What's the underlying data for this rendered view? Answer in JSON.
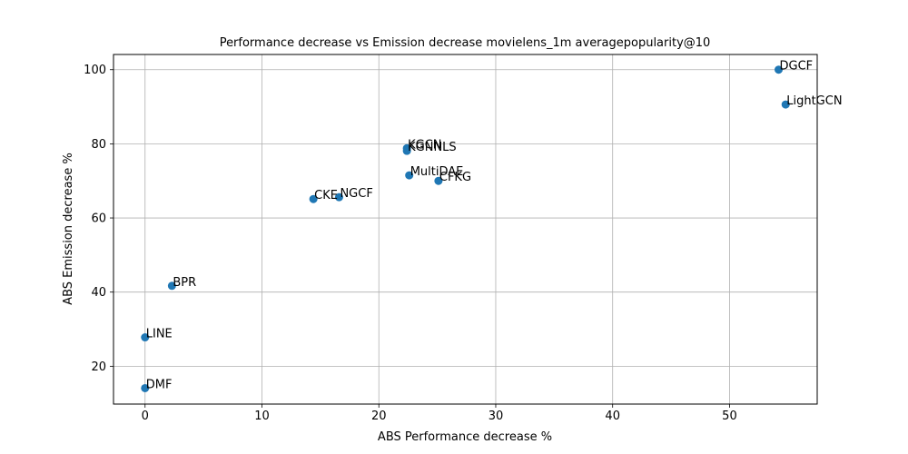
{
  "chart_data": {
    "type": "scatter",
    "title": "Performance decrease vs Emission decrease movielens_1m averagepopularity@10",
    "xlabel": "ABS Performance decrease %",
    "ylabel": "ABS Emission decrease %",
    "xlim": [
      -2.7,
      57.5
    ],
    "ylim": [
      9.8,
      104.1
    ],
    "xticks": [
      0,
      10,
      20,
      30,
      40,
      50
    ],
    "yticks": [
      20,
      40,
      60,
      80,
      100
    ],
    "grid": true,
    "marker_color": "#1f77b4",
    "points": [
      {
        "label": "DGCF",
        "x": 54.2,
        "y": 100.0
      },
      {
        "label": "LightGCN",
        "x": 54.8,
        "y": 90.6
      },
      {
        "label": "KGCN",
        "x": 22.4,
        "y": 78.8
      },
      {
        "label": "KGNNLS",
        "x": 22.4,
        "y": 78.1
      },
      {
        "label": "MultiDAE",
        "x": 22.6,
        "y": 71.5
      },
      {
        "label": "CFKG",
        "x": 25.1,
        "y": 70.0
      },
      {
        "label": "NGCF",
        "x": 16.6,
        "y": 65.6
      },
      {
        "label": "CKE",
        "x": 14.4,
        "y": 65.1
      },
      {
        "label": "BPR",
        "x": 2.3,
        "y": 41.7
      },
      {
        "label": "LINE",
        "x": 0.0,
        "y": 27.8
      },
      {
        "label": "DMF",
        "x": 0.0,
        "y": 14.1
      }
    ]
  }
}
